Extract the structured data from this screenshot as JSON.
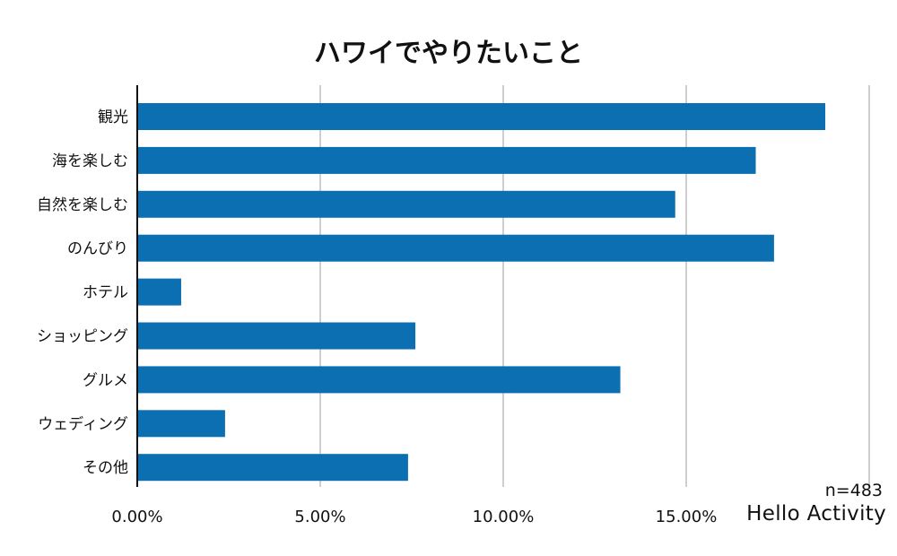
{
  "chart_data": {
    "type": "bar",
    "orientation": "horizontal",
    "title": "ハワイでやりたいこと",
    "categories": [
      "観光",
      "海を楽しむ",
      "自然を楽しむ",
      "のんびり",
      "ホテル",
      "ショッピング",
      "グルメ",
      "ウェディング",
      "その他"
    ],
    "values": [
      18.8,
      16.9,
      14.7,
      17.4,
      1.2,
      7.6,
      13.2,
      2.4,
      7.4
    ],
    "x_ticks": [
      "0.00%",
      "5.00%",
      "10.00%",
      "15.00%"
    ],
    "xlim": [
      0,
      20
    ],
    "grid": true,
    "bar_color": "#0b6fb2",
    "grid_color": "#cfcfcf"
  },
  "footnote": "n=483",
  "brand": {
    "text": "Hello Activity",
    "accent_color": "#f5a623"
  }
}
